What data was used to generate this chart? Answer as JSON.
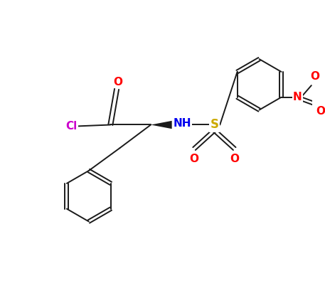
{
  "bg_color": "#ffffff",
  "bond_color": "#1a1a1a",
  "atom_colors": {
    "O": "#ff0000",
    "N_amine": "#0000ee",
    "S": "#ccaa00",
    "Cl": "#cc00cc",
    "N_nitro": "#ff0000"
  },
  "figsize": [
    4.57,
    4.12
  ],
  "dpi": 100
}
